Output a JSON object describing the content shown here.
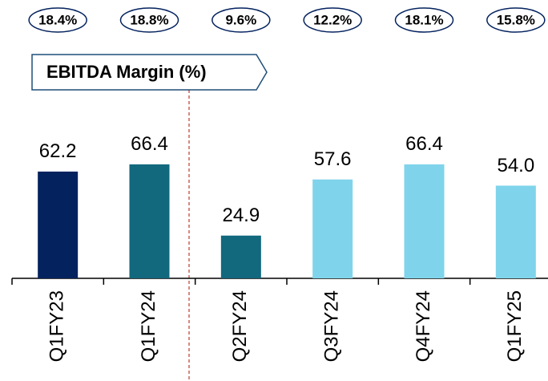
{
  "chart_data": {
    "type": "bar",
    "annotation": "EBITDA Margin (%)",
    "categories": [
      "Q1FY23",
      "Q1FY24",
      "Q2FY24",
      "Q3FY24",
      "Q4FY24",
      "Q1FY25"
    ],
    "values": [
      62.2,
      66.4,
      24.9,
      57.6,
      66.4,
      54.0
    ],
    "value_labels": [
      "62.2",
      "66.4",
      "24.9",
      "57.6",
      "66.4",
      "54.0"
    ],
    "colors": [
      "#04225e",
      "#12687d",
      "#12687d",
      "#7fd4eb",
      "#7fd4eb",
      "#7fd4eb"
    ],
    "margins": {
      "values": [
        18.4,
        18.8,
        9.6,
        12.2,
        18.1,
        15.8
      ],
      "value_labels": [
        "18.4%",
        "18.8%",
        "9.6%",
        "12.2%",
        "18.1%",
        "15.8%"
      ]
    }
  }
}
